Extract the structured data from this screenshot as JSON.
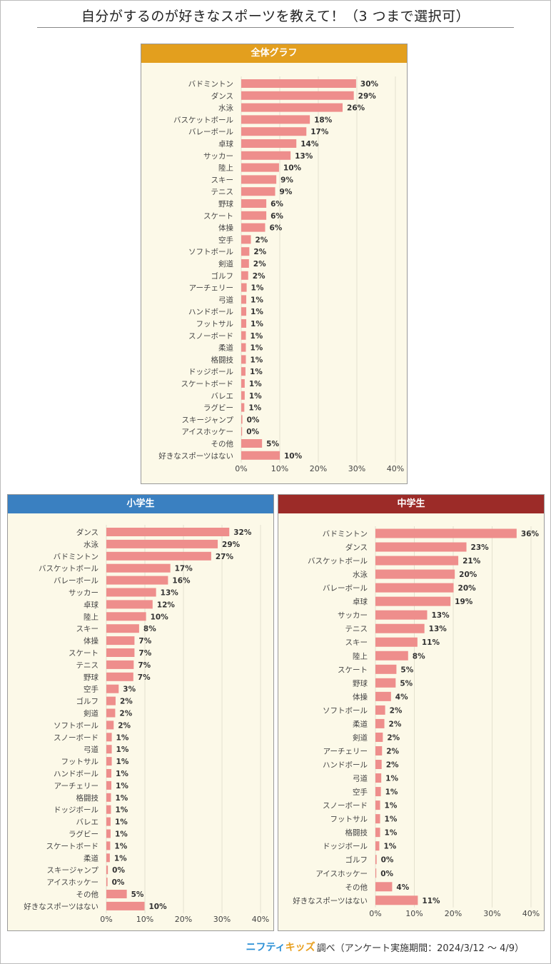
{
  "title": "自分がするのが好きなスポーツを教えて！（3 つまで選択可）",
  "footer": {
    "logo_part1": "ニフティ",
    "logo_part2": "キッズ",
    "text": "調べ（アンケート実施期間：2024/3/12 ～ 4/9）"
  },
  "colors": {
    "bar": "#ee8e8c",
    "overall_header": "#e39f1e",
    "elementary_header": "#3a80c1",
    "middle_header": "#9c2b28",
    "panel_bg": "#fcf9e8",
    "grid": "#e4e1cf"
  },
  "chart_data": [
    {
      "id": "overall",
      "title": "全体グラフ",
      "type": "bar",
      "orientation": "horizontal",
      "xlim": [
        0,
        40
      ],
      "xticks": [
        "0%",
        "10%",
        "20%",
        "30%",
        "40%"
      ],
      "categories": [
        "バドミントン",
        "ダンス",
        "水泳",
        "バスケットボール",
        "バレーボール",
        "卓球",
        "サッカー",
        "陸上",
        "スキー",
        "テニス",
        "野球",
        "スケート",
        "体操",
        "空手",
        "ソフトボール",
        "剣道",
        "ゴルフ",
        "アーチェリー",
        "弓道",
        "ハンドボール",
        "フットサル",
        "スノーボード",
        "柔道",
        "格闘技",
        "ドッジボール",
        "スケートボード",
        "バレエ",
        "ラグビー",
        "スキージャンプ",
        "アイスホッケー",
        "その他",
        "好きなスポーツはない"
      ],
      "values": [
        30,
        29,
        26,
        18,
        17,
        14,
        13,
        10,
        9,
        9,
        6,
        6,
        6,
        2,
        2,
        2,
        2,
        1,
        1,
        1,
        1,
        1,
        1,
        1,
        1,
        1,
        1,
        1,
        0,
        0,
        5,
        10
      ],
      "draw": [
        29.8,
        29.2,
        26.3,
        17.8,
        16.9,
        14.3,
        12.8,
        9.8,
        9.1,
        8.8,
        6.5,
        6.5,
        6.2,
        2.5,
        2.1,
        2.0,
        1.8,
        1.4,
        1.3,
        1.3,
        1.3,
        1.2,
        1.2,
        1.2,
        1.1,
        0.9,
        0.9,
        0.8,
        0.3,
        0.2,
        5.4,
        10.0
      ],
      "labels": [
        "30%",
        "29%",
        "26%",
        "18%",
        "17%",
        "14%",
        "13%",
        "10%",
        "9%",
        "9%",
        "6%",
        "6%",
        "6%",
        "2%",
        "2%",
        "2%",
        "2%",
        "1%",
        "1%",
        "1%",
        "1%",
        "1%",
        "1%",
        "1%",
        "1%",
        "1%",
        "1%",
        "1%",
        "0%",
        "0%",
        "5%",
        "10%"
      ]
    },
    {
      "id": "elementary",
      "title": "小学生",
      "type": "bar",
      "orientation": "horizontal",
      "xlim": [
        0,
        40
      ],
      "xticks": [
        "0%",
        "10%",
        "20%",
        "30%",
        "40%"
      ],
      "categories": [
        "ダンス",
        "水泳",
        "バドミントン",
        "バスケットボール",
        "バレーボール",
        "サッカー",
        "卓球",
        "陸上",
        "スキー",
        "体操",
        "スケート",
        "テニス",
        "野球",
        "空手",
        "ゴルフ",
        "剣道",
        "ソフトボール",
        "スノーボード",
        "弓道",
        "フットサル",
        "ハンドボール",
        "アーチェリー",
        "格闘技",
        "ドッジボール",
        "バレエ",
        "ラグビー",
        "スケートボード",
        "柔道",
        "スキージャンプ",
        "アイスホッケー",
        "その他",
        "好きなスポーツはない"
      ],
      "values": [
        32,
        29,
        27,
        17,
        16,
        13,
        12,
        10,
        8,
        7,
        7,
        7,
        7,
        3,
        2,
        2,
        2,
        1,
        1,
        1,
        1,
        1,
        1,
        1,
        1,
        1,
        1,
        1,
        0,
        0,
        5,
        10
      ],
      "draw": [
        31.9,
        28.9,
        27.2,
        16.6,
        16.0,
        12.9,
        12.0,
        10.3,
        8.5,
        7.3,
        7.3,
        7.1,
        7.0,
        3.2,
        2.4,
        2.3,
        1.9,
        1.4,
        1.4,
        1.4,
        1.3,
        1.3,
        1.2,
        1.2,
        1.1,
        1.1,
        1.0,
        0.9,
        0.4,
        0.3,
        5.3,
        9.9
      ],
      "labels": [
        "32%",
        "29%",
        "27%",
        "17%",
        "16%",
        "13%",
        "12%",
        "10%",
        "8%",
        "7%",
        "7%",
        "7%",
        "7%",
        "3%",
        "2%",
        "2%",
        "2%",
        "1%",
        "1%",
        "1%",
        "1%",
        "1%",
        "1%",
        "1%",
        "1%",
        "1%",
        "1%",
        "1%",
        "0%",
        "0%",
        "5%",
        "10%"
      ]
    },
    {
      "id": "middle",
      "title": "中学生",
      "type": "bar",
      "orientation": "horizontal",
      "xlim": [
        0,
        40
      ],
      "xticks": [
        "0%",
        "10%",
        "20%",
        "30%",
        "40%"
      ],
      "categories": [
        "バドミントン",
        "ダンス",
        "バスケットボール",
        "水泳",
        "バレーボール",
        "卓球",
        "サッカー",
        "テニス",
        "スキー",
        "陸上",
        "スケート",
        "野球",
        "体操",
        "ソフトボール",
        "柔道",
        "剣道",
        "アーチェリー",
        "ハンドボール",
        "弓道",
        "空手",
        "スノーボード",
        "フットサル",
        "格闘技",
        "ドッジボール",
        "ゴルフ",
        "アイスホッケー",
        "その他",
        "好きなスポーツはない"
      ],
      "values": [
        36,
        23,
        21,
        20,
        20,
        19,
        13,
        13,
        11,
        8,
        5,
        5,
        4,
        2,
        2,
        2,
        2,
        2,
        1,
        1,
        1,
        1,
        1,
        1,
        0,
        0,
        4,
        11
      ],
      "draw": [
        36.3,
        23.4,
        21.3,
        20.4,
        20.1,
        19.3,
        13.3,
        12.6,
        10.8,
        8.4,
        5.4,
        5.2,
        4.0,
        2.5,
        2.3,
        1.9,
        1.7,
        1.6,
        1.5,
        1.4,
        1.2,
        1.2,
        1.2,
        1.0,
        0.3,
        0.2,
        4.3,
        10.9
      ],
      "labels": [
        "36%",
        "23%",
        "21%",
        "20%",
        "20%",
        "19%",
        "13%",
        "13%",
        "11%",
        "8%",
        "5%",
        "5%",
        "4%",
        "2%",
        "2%",
        "2%",
        "2%",
        "2%",
        "1%",
        "1%",
        "1%",
        "1%",
        "1%",
        "1%",
        "0%",
        "0%",
        "4%",
        "11%"
      ]
    }
  ]
}
